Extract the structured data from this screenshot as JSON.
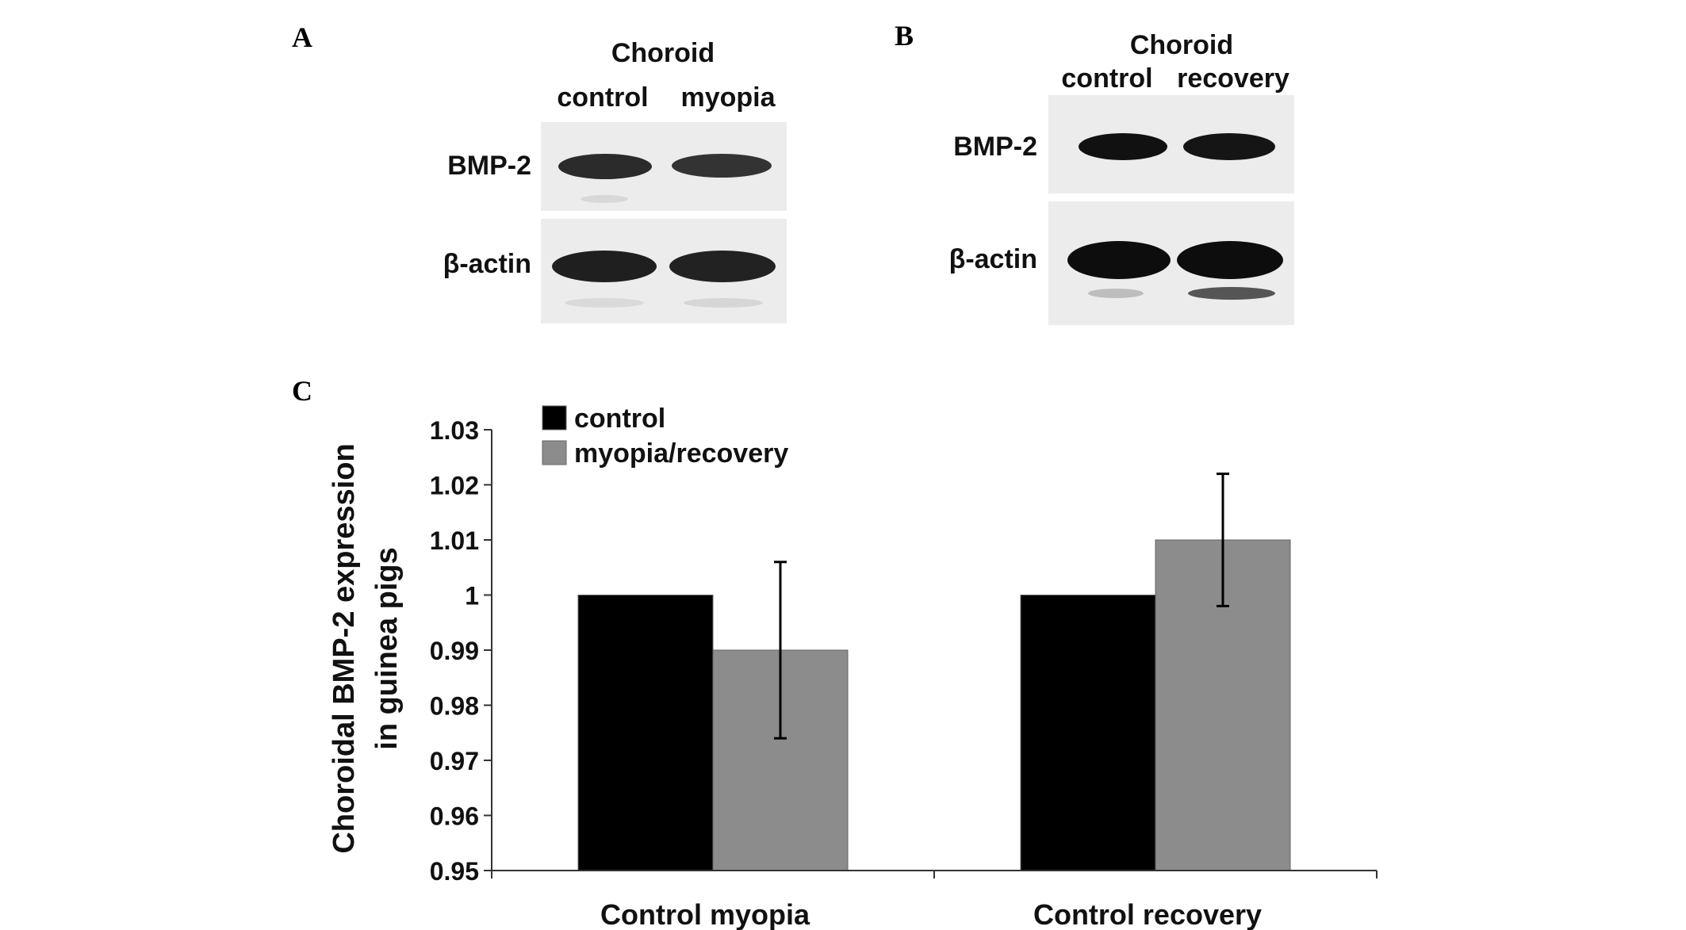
{
  "panels": {
    "a": {
      "letter": "A",
      "header": "Choroid",
      "lanes": [
        "control",
        "myopia"
      ],
      "rows": [
        "BMP-2",
        "β-actin"
      ]
    },
    "b": {
      "letter": "B",
      "header": "Choroid",
      "lanes": [
        "control",
        "recovery"
      ],
      "rows": [
        "BMP-2",
        "β-actin"
      ]
    },
    "c": {
      "letter": "C"
    }
  },
  "chart_data": {
    "type": "bar",
    "categories": [
      "Control myopia",
      "Control recovery"
    ],
    "series": [
      {
        "name": "control",
        "color": "#000000",
        "values": [
          1.0,
          1.0
        ],
        "errors": [
          0,
          0
        ]
      },
      {
        "name": "myopia/recovery",
        "color": "#8c8c8c",
        "values": [
          0.99,
          1.01
        ],
        "errors": [
          0.016,
          0.012
        ]
      }
    ],
    "xlabel": "",
    "ylabel": "Choroidal BMP-2 expression in guinea pigs",
    "ylabel_lines": [
      "Choroidal BMP-2 expression",
      "in guinea pigs"
    ],
    "ylim": [
      0.95,
      1.03
    ],
    "yticks": [
      "0.95",
      "0.96",
      "0.97",
      "0.98",
      "0.99",
      "1",
      "1.01",
      "1.02",
      "1.03"
    ],
    "grid": false,
    "legend_position": "top-left"
  }
}
